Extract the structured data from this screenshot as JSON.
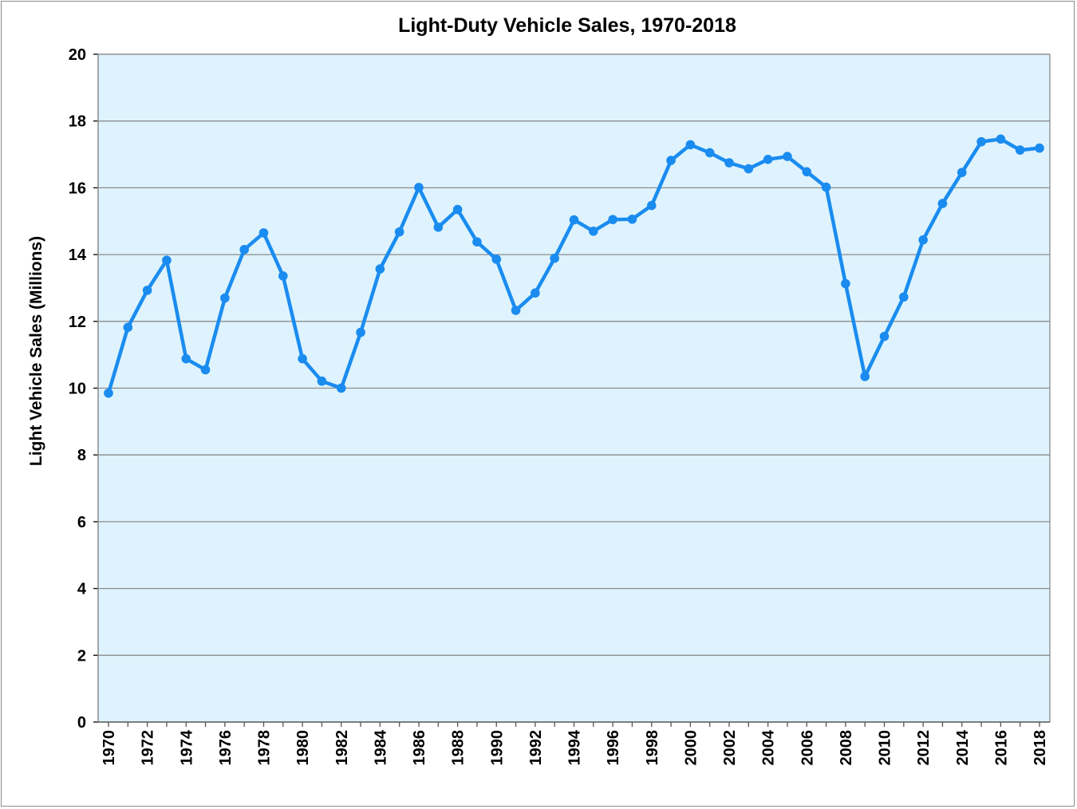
{
  "chart_data": {
    "type": "line",
    "title": "Light-Duty Vehicle Sales, 1970-2018",
    "xlabel": "",
    "ylabel": "Light Vehicle Sales (Millions)",
    "ylim": [
      0,
      20
    ],
    "yticks": [
      "0",
      "2",
      "4",
      "6",
      "8",
      "10",
      "12",
      "14",
      "16",
      "18",
      "20"
    ],
    "xticks": [
      "1970",
      "1972",
      "1974",
      "1976",
      "1978",
      "1980",
      "1982",
      "1984",
      "1986",
      "1988",
      "1990",
      "1992",
      "1994",
      "1996",
      "1998",
      "2000",
      "2002",
      "2004",
      "2006",
      "2008",
      "2010",
      "2012",
      "2014",
      "2016",
      "2018"
    ],
    "grid": true,
    "legend": "none",
    "colors": {
      "series": "#1a8cf0",
      "plot_background": "#def3fd",
      "grid": "#8c8c8c"
    },
    "x": [
      1970,
      1971,
      1972,
      1973,
      1974,
      1975,
      1976,
      1977,
      1978,
      1979,
      1980,
      1981,
      1982,
      1983,
      1984,
      1985,
      1986,
      1987,
      1988,
      1989,
      1990,
      1991,
      1992,
      1993,
      1994,
      1995,
      1996,
      1997,
      1998,
      1999,
      2000,
      2001,
      2002,
      2003,
      2004,
      2005,
      2006,
      2007,
      2008,
      2009,
      2010,
      2011,
      2012,
      2013,
      2014,
      2015,
      2016,
      2017,
      2018
    ],
    "series": [
      {
        "values": [
          9.85,
          11.82,
          12.93,
          13.83,
          10.88,
          10.55,
          12.7,
          14.15,
          14.65,
          13.36,
          10.88,
          10.21,
          10.0,
          11.67,
          13.57,
          14.68,
          16.01,
          14.82,
          15.35,
          14.38,
          13.86,
          12.33,
          12.85,
          13.89,
          15.04,
          14.7,
          15.05,
          15.06,
          15.47,
          16.82,
          17.29,
          17.05,
          16.75,
          16.57,
          16.85,
          16.94,
          16.48,
          16.02,
          13.13,
          10.35,
          11.55,
          12.73,
          14.44,
          15.53,
          16.46,
          17.38,
          17.46,
          17.13,
          17.19
        ]
      }
    ]
  }
}
